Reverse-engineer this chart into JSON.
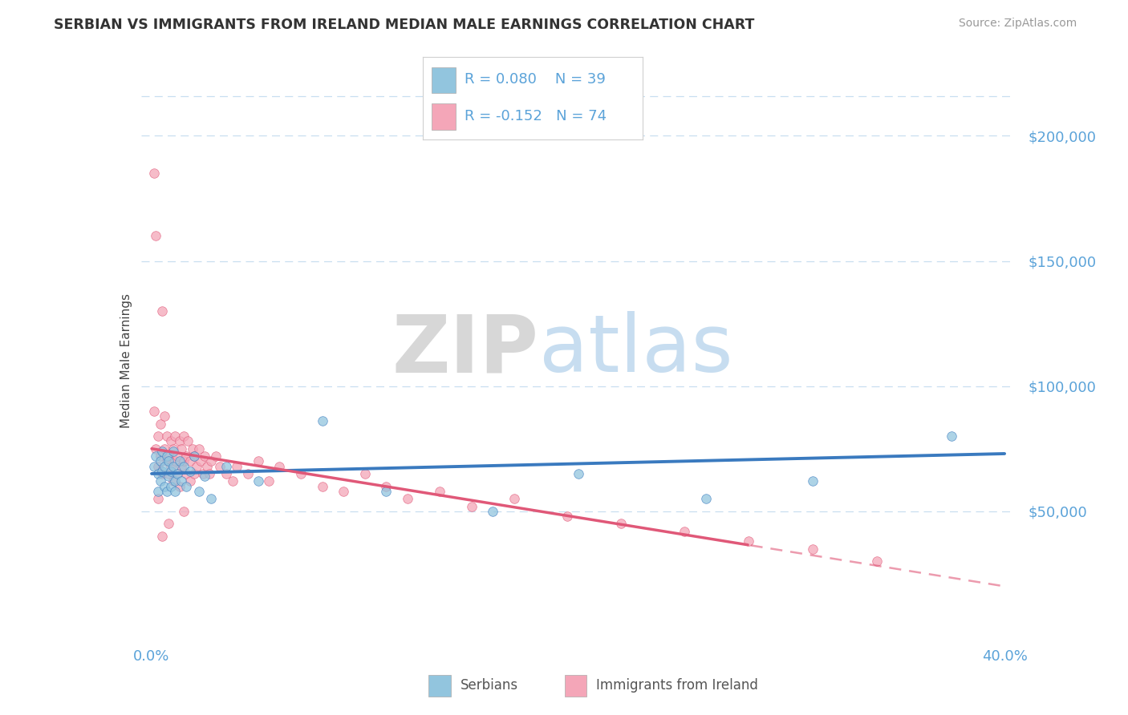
{
  "title": "SERBIAN VS IMMIGRANTS FROM IRELAND MEDIAN MALE EARNINGS CORRELATION CHART",
  "source_text": "Source: ZipAtlas.com",
  "ylabel": "Median Male Earnings",
  "xlim": [
    -0.005,
    0.405
  ],
  "ylim": [
    0,
    220000
  ],
  "blue_color": "#92c5de",
  "pink_color": "#f4a6b8",
  "blue_line_color": "#3a7abf",
  "pink_line_color": "#e05878",
  "axis_color": "#5ba3d9",
  "grid_color": "#c8dff0",
  "title_color": "#333333",
  "source_color": "#999999",
  "ylabel_color": "#444444",
  "watermark_ZIP_color": "#d0d0d0",
  "watermark_atlas_color": "#aacce8",
  "serbian_x": [
    0.001,
    0.002,
    0.003,
    0.003,
    0.004,
    0.004,
    0.005,
    0.005,
    0.006,
    0.006,
    0.007,
    0.007,
    0.008,
    0.008,
    0.009,
    0.009,
    0.01,
    0.01,
    0.011,
    0.011,
    0.012,
    0.013,
    0.014,
    0.015,
    0.016,
    0.018,
    0.02,
    0.022,
    0.025,
    0.028,
    0.035,
    0.05,
    0.08,
    0.11,
    0.16,
    0.2,
    0.26,
    0.31,
    0.375
  ],
  "serbian_y": [
    68000,
    72000,
    65000,
    58000,
    70000,
    62000,
    66000,
    74000,
    60000,
    68000,
    72000,
    58000,
    64000,
    70000,
    66000,
    60000,
    68000,
    74000,
    62000,
    58000,
    65000,
    70000,
    62000,
    68000,
    60000,
    66000,
    72000,
    58000,
    64000,
    55000,
    68000,
    62000,
    86000,
    58000,
    50000,
    65000,
    55000,
    62000,
    80000
  ],
  "ireland_x": [
    0.001,
    0.001,
    0.002,
    0.002,
    0.003,
    0.003,
    0.004,
    0.004,
    0.005,
    0.005,
    0.006,
    0.006,
    0.007,
    0.007,
    0.008,
    0.008,
    0.009,
    0.009,
    0.01,
    0.01,
    0.011,
    0.011,
    0.012,
    0.012,
    0.013,
    0.013,
    0.014,
    0.014,
    0.015,
    0.015,
    0.016,
    0.016,
    0.017,
    0.018,
    0.018,
    0.019,
    0.02,
    0.02,
    0.021,
    0.022,
    0.023,
    0.024,
    0.025,
    0.026,
    0.027,
    0.028,
    0.03,
    0.032,
    0.035,
    0.038,
    0.04,
    0.045,
    0.05,
    0.055,
    0.06,
    0.07,
    0.08,
    0.09,
    0.1,
    0.11,
    0.12,
    0.135,
    0.15,
    0.17,
    0.195,
    0.22,
    0.25,
    0.28,
    0.31,
    0.34,
    0.005,
    0.008,
    0.015,
    0.003
  ],
  "ireland_y": [
    185000,
    90000,
    160000,
    75000,
    80000,
    68000,
    85000,
    72000,
    130000,
    65000,
    75000,
    88000,
    70000,
    80000,
    72000,
    65000,
    78000,
    68000,
    75000,
    62000,
    80000,
    70000,
    72000,
    65000,
    78000,
    60000,
    75000,
    68000,
    80000,
    70000,
    72000,
    65000,
    78000,
    70000,
    62000,
    75000,
    72000,
    65000,
    68000,
    75000,
    70000,
    65000,
    72000,
    68000,
    65000,
    70000,
    72000,
    68000,
    65000,
    62000,
    68000,
    65000,
    70000,
    62000,
    68000,
    65000,
    60000,
    58000,
    65000,
    60000,
    55000,
    58000,
    52000,
    55000,
    48000,
    45000,
    42000,
    38000,
    35000,
    30000,
    40000,
    45000,
    50000,
    55000
  ]
}
